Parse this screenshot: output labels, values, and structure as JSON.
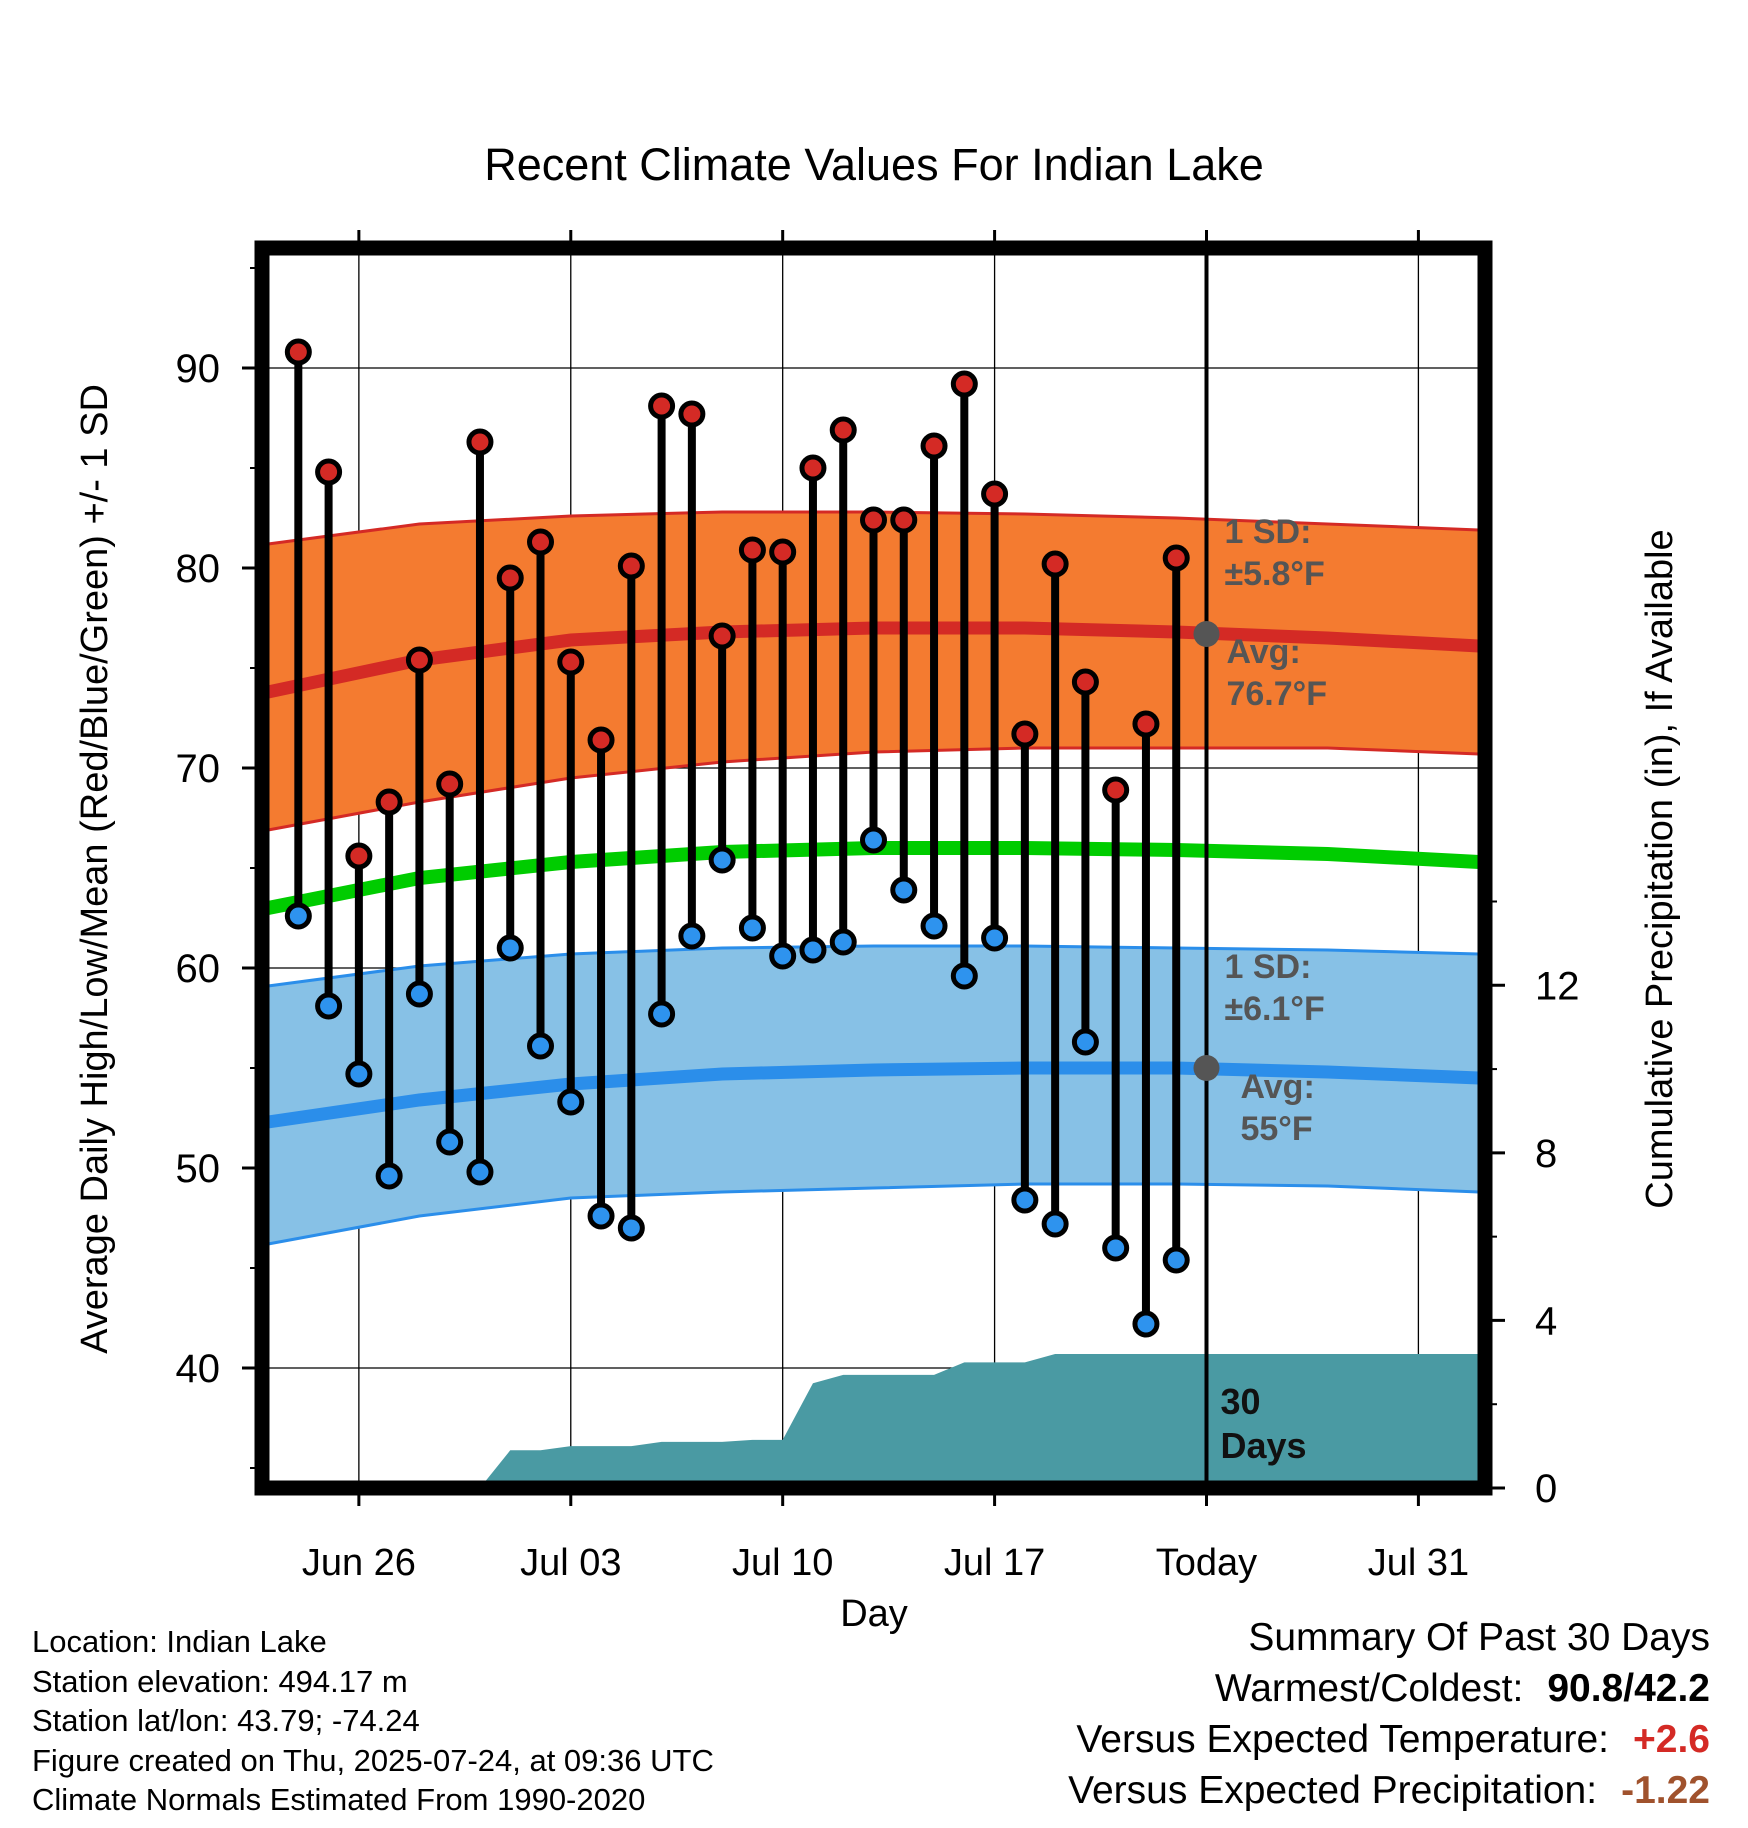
{
  "chart_data": {
    "type": "line",
    "title": "Recent Climate Values For Indian Lake",
    "xlabel": "Day",
    "ylabel": "Average Daily High/Low/Mean (Red/Blue/Green) +/- 1 SD",
    "y2label": "Cumulative Precipitation (in), If Available",
    "ylim": [
      34,
      96
    ],
    "y2lim": [
      0,
      29.6
    ],
    "x_tick_labels": [
      "Jun 26",
      "Jul 03",
      "Jul 10",
      "Jul 17",
      "Today",
      "Jul 31"
    ],
    "x_tick_days": [
      3,
      10,
      17,
      24,
      31,
      38
    ],
    "xlim": [
      -0.2,
      40.2
    ],
    "y_ticks": [
      40,
      50,
      60,
      70,
      80,
      90
    ],
    "y2_ticks": [
      0,
      4,
      8,
      12
    ],
    "grid": true,
    "today_day": 31,
    "today_marker_label": "30\nDays",
    "days": [
      1,
      2,
      3,
      4,
      5,
      6,
      7,
      8,
      9,
      10,
      11,
      12,
      13,
      14,
      15,
      16,
      17,
      18,
      19,
      20,
      21,
      22,
      23,
      24,
      25,
      26,
      27,
      28,
      29,
      30
    ],
    "daily_high": [
      90.8,
      84.8,
      65.6,
      68.3,
      75.4,
      69.2,
      86.3,
      79.5,
      81.3,
      75.3,
      71.4,
      80.1,
      88.1,
      87.7,
      76.6,
      80.9,
      80.8,
      85.0,
      86.9,
      82.4,
      82.4,
      86.1,
      89.2,
      83.7,
      71.7,
      80.2,
      74.3,
      68.9,
      72.2,
      80.5
    ],
    "daily_low": [
      62.6,
      58.1,
      54.7,
      49.6,
      58.7,
      51.3,
      49.8,
      61.0,
      56.1,
      53.3,
      47.6,
      47.0,
      57.7,
      61.6,
      65.4,
      62.0,
      60.6,
      60.9,
      61.3,
      66.4,
      63.9,
      62.1,
      59.6,
      61.5,
      48.4,
      47.2,
      56.3,
      46.0,
      42.2,
      45.4
    ],
    "normal_days": [
      0,
      5,
      10,
      15,
      20,
      25,
      30,
      35,
      40
    ],
    "normal_high": [
      73.8,
      75.4,
      76.4,
      76.8,
      77.0,
      77.0,
      76.8,
      76.5,
      76.1
    ],
    "normal_high_sd_upper": [
      81.2,
      82.2,
      82.6,
      82.8,
      82.8,
      82.7,
      82.5,
      82.2,
      81.9
    ],
    "normal_high_sd_lower": [
      66.9,
      68.3,
      69.5,
      70.3,
      70.8,
      71.0,
      71.0,
      71.0,
      70.7
    ],
    "normal_low": [
      52.3,
      53.4,
      54.2,
      54.7,
      54.9,
      55.0,
      55.0,
      54.8,
      54.5
    ],
    "normal_low_sd_upper": [
      59.1,
      60.1,
      60.7,
      61.0,
      61.1,
      61.1,
      61.0,
      60.9,
      60.7
    ],
    "normal_low_sd_lower": [
      46.2,
      47.6,
      48.5,
      48.8,
      49.0,
      49.2,
      49.2,
      49.1,
      48.8
    ],
    "normal_mean": [
      63.0,
      64.5,
      65.3,
      65.8,
      66.0,
      66.0,
      65.9,
      65.7,
      65.3
    ],
    "precip_days": [
      0,
      1,
      2,
      3,
      4,
      5,
      6,
      7,
      8,
      9,
      10,
      11,
      12,
      13,
      14,
      15,
      16,
      17,
      18,
      19,
      20,
      21,
      22,
      23,
      24,
      25,
      26,
      27,
      28,
      29,
      30,
      31,
      40.2
    ],
    "precip_cumulative": [
      0,
      0,
      0,
      0,
      0,
      0,
      0,
      0,
      0.9,
      0.9,
      1.0,
      1.0,
      1.0,
      1.1,
      1.1,
      1.1,
      1.15,
      1.15,
      2.5,
      2.7,
      2.7,
      2.7,
      2.7,
      3.0,
      3.0,
      3.0,
      3.2,
      3.2,
      3.2,
      3.2,
      3.2,
      3.2,
      3.2
    ],
    "annotations": {
      "high_sd_label": "1 SD:",
      "high_sd_value": "±5.8°F",
      "high_avg_label": "Avg:",
      "high_avg_value": "76.7°F",
      "low_sd_label": "1 SD:",
      "low_sd_value": "±6.1°F",
      "low_avg_label": "Avg:",
      "low_avg_value": "55°F",
      "today_high_avg": 76.7,
      "today_low_avg": 55.0
    },
    "colors": {
      "high_band": "#F47B30",
      "high_line": "#D42A25",
      "low_band": "#87C1E6",
      "low_line": "#2B8EEA",
      "mean_line": "#00CC00",
      "precip": "#4A9AA3",
      "high_dot": "#D42A25",
      "low_dot": "#2E93EE",
      "annotation": "#555555"
    }
  },
  "footer": {
    "location": "Location: Indian Lake",
    "elevation": "Station elevation: 494.17 m",
    "latlon": "Station lat/lon: 43.79; -74.24",
    "created": "Figure created on Thu, 2025-07-24, at 09:36 UTC",
    "normals": "Climate Normals Estimated From 1990-2020"
  },
  "summary": {
    "title": "Summary Of Past 30 Days",
    "warm_cold_label": "Warmest/Coldest:",
    "warm_cold_value": "90.8/42.2",
    "temp_label": "Versus Expected Temperature:",
    "temp_value": "+2.6",
    "temp_color": "#D42A25",
    "precip_label": "Versus Expected Precipitation:",
    "precip_value": "-1.22",
    "precip_color": "#A0522D"
  }
}
